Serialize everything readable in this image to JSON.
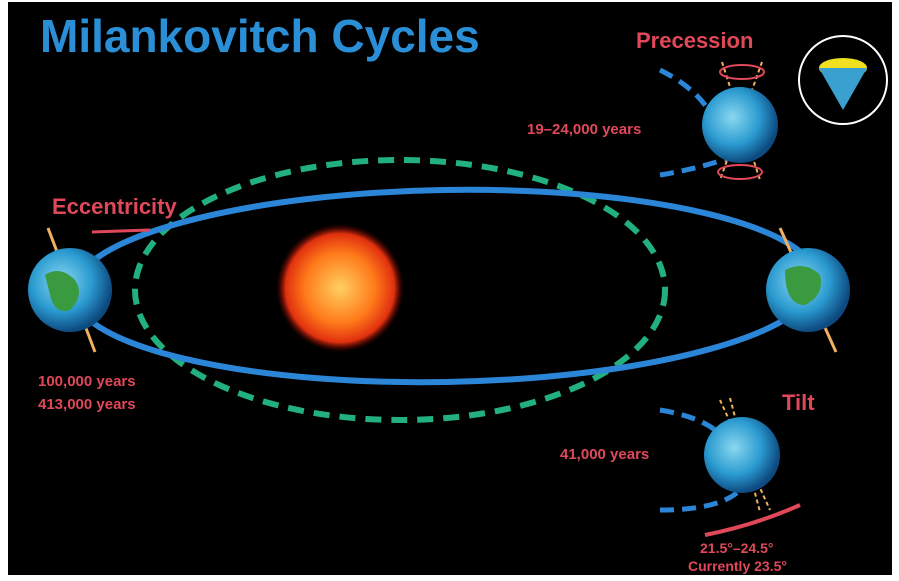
{
  "title": "Milankovitch Cycles",
  "precession": {
    "label": "Precession",
    "period": "19–24,000 years"
  },
  "eccentricity": {
    "label": "Eccentricity",
    "periods": [
      "100,000 years",
      "413,000 years"
    ]
  },
  "tilt": {
    "label": "Tilt",
    "period": "41,000 years",
    "range": "21.5°–24.5°",
    "current": "Currently 23.5°"
  }
}
